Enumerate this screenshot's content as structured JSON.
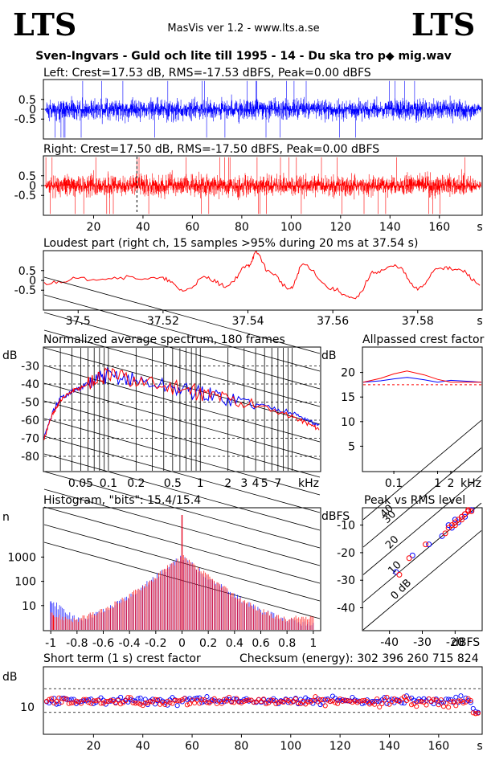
{
  "header": {
    "logo_left": "LTS",
    "logo_right": "LTS",
    "app_title": "MasVis ver 1.2 - www.lts.a.se",
    "file_title": "Sven-Ingvars - Guld och lite till 1995 - 14 - Du ska tro p◆ mig.wav"
  },
  "colors": {
    "left": "#0000ff",
    "right": "#ff0000",
    "grid": "#000000"
  },
  "chart_data": [
    {
      "id": "left_waveform",
      "type": "line",
      "title": "Left: Crest=17.53 dB, RMS=-17.53 dBFS, Peak=0.00 dBFS",
      "yticks": [
        "0.5",
        "0",
        "-0.5"
      ],
      "ylim": [
        -1,
        1
      ],
      "xlim": [
        0,
        177
      ],
      "series": [
        {
          "color": "#0000ff",
          "envelope": {
            "amplitude_typical": 0.8,
            "peak": 1.0,
            "fade_out_start": 172,
            "end": 177
          }
        }
      ]
    },
    {
      "id": "right_waveform",
      "type": "line",
      "title": "Right: Crest=17.50 dB, RMS=-17.50 dBFS, Peak=0.00 dBFS",
      "yticks": [
        "0.5",
        "0",
        "-0.5"
      ],
      "ylim": [
        -1,
        1
      ],
      "xlim": [
        0,
        177
      ],
      "xticks": [
        20,
        40,
        60,
        80,
        100,
        120,
        140,
        160
      ],
      "xunit": "s",
      "marker_x": 37.54,
      "series": [
        {
          "color": "#ff0000",
          "envelope": {
            "amplitude_typical": 0.8,
            "peak": 1.0,
            "fade_out_start": 172,
            "end": 177
          }
        }
      ]
    },
    {
      "id": "loudest_part",
      "type": "line",
      "title": "Loudest part (right ch, 15 samples >95% during 20 ms at 37.54 s)",
      "yticks": [
        "0.5",
        "0",
        "-0.5"
      ],
      "ylim": [
        -1,
        1
      ],
      "xlim": [
        37.492,
        37.595
      ],
      "xticks": [
        "37.5",
        "37.52",
        "37.54",
        "37.56",
        "37.58"
      ],
      "xunit": "s",
      "series": [
        {
          "color": "#ff0000",
          "x": [
            37.492,
            37.5,
            37.51,
            37.52,
            37.525,
            37.53,
            37.535,
            37.54,
            37.542,
            37.545,
            37.55,
            37.553,
            37.56,
            37.565,
            37.57,
            37.575,
            37.58,
            37.585,
            37.59,
            37.595
          ],
          "y": [
            -0.1,
            0.05,
            0.1,
            0.05,
            -0.35,
            0.1,
            -0.2,
            0.5,
            0.95,
            0.3,
            -0.3,
            0.55,
            -0.3,
            -0.65,
            0.3,
            0.5,
            -0.3,
            0.45,
            0.35,
            -0.15
          ]
        }
      ]
    },
    {
      "id": "spectrum",
      "type": "line",
      "title": "Normalized average spectrum, 180 frames",
      "ylabel": "dB",
      "yticks": [
        "-30",
        "-40",
        "-50",
        "-60",
        "-70",
        "-80"
      ],
      "ylim": [
        -88,
        -20
      ],
      "xticks": [
        "0.05",
        "0.1",
        "0.2",
        "0.5",
        "1",
        "2",
        "3",
        "4",
        "5",
        "7"
      ],
      "xunit": "kHz",
      "xscale": "log",
      "xlim": [
        0.02,
        20
      ],
      "series": [
        {
          "name": "left",
          "color": "#0000ff",
          "x": [
            0.02,
            0.025,
            0.03,
            0.04,
            0.05,
            0.07,
            0.1,
            0.2,
            0.5,
            1,
            2,
            5,
            10,
            15,
            20
          ],
          "y": [
            -70,
            -55,
            -48,
            -44,
            -42,
            -38,
            -35,
            -38,
            -42,
            -45,
            -48,
            -52,
            -56,
            -60,
            -64
          ]
        },
        {
          "name": "right",
          "color": "#ff0000",
          "x": [
            0.02,
            0.025,
            0.03,
            0.04,
            0.05,
            0.07,
            0.1,
            0.2,
            0.5,
            1,
            2,
            5,
            10,
            15,
            20
          ],
          "y": [
            -70,
            -56,
            -49,
            -44,
            -42,
            -38,
            -35,
            -38,
            -42,
            -45,
            -48,
            -53,
            -58,
            -62,
            -65
          ]
        }
      ]
    },
    {
      "id": "allpassed_crest",
      "type": "line",
      "title": "Allpassed crest factor",
      "ylabel": "dB",
      "yticks": [
        "20",
        "15",
        "10",
        "5"
      ],
      "ylim": [
        0,
        25
      ],
      "xscale": "log",
      "xlim": [
        0.02,
        10
      ],
      "xticks": [
        "0.1",
        "1",
        "2"
      ],
      "xunit": "kHz",
      "reference_line": 17.5,
      "series": [
        {
          "name": "left",
          "color": "#0000ff",
          "x": [
            0.02,
            0.05,
            0.1,
            0.2,
            0.5,
            1,
            2,
            5,
            10
          ],
          "y": [
            18,
            18.3,
            18.7,
            19,
            18.5,
            18,
            18.4,
            18.2,
            18.0
          ]
        },
        {
          "name": "right",
          "color": "#ff0000",
          "x": [
            0.02,
            0.05,
            0.1,
            0.2,
            0.5,
            1,
            2,
            5,
            10
          ],
          "y": [
            18,
            18.8,
            19.7,
            20.3,
            19.5,
            18.6,
            18.0,
            18.0,
            18.0
          ]
        }
      ]
    },
    {
      "id": "histogram",
      "type": "line",
      "title": "Histogram, \"bits\": 15.4/15.4",
      "ylabel": "n",
      "yticks": [
        "1000",
        "100",
        "10"
      ],
      "yscale": "log",
      "ylim": [
        1,
        100000
      ],
      "xticks": [
        "-1",
        "-0.8",
        "-0.6",
        "-0.4",
        "-0.2",
        "0",
        "0.2",
        "0.4",
        "0.6",
        "0.8",
        "1"
      ],
      "xlim": [
        -1.05,
        1.05
      ],
      "series": [
        {
          "name": "left",
          "color": "#0000ff",
          "x": [
            -1,
            -0.8,
            -0.6,
            -0.4,
            -0.2,
            0,
            0.2,
            0.4,
            0.6,
            0.8,
            1
          ],
          "y": [
            15,
            2.5,
            6,
            25,
            150,
            1000,
            150,
            25,
            6,
            2.5,
            1.5
          ]
        },
        {
          "name": "right",
          "color": "#ff0000",
          "x": [
            -1,
            -0.8,
            -0.6,
            -0.4,
            -0.2,
            0,
            0.2,
            0.4,
            0.6,
            0.8,
            1
          ],
          "y": [
            4,
            2.5,
            6,
            25,
            150,
            1000,
            150,
            25,
            6,
            2.5,
            4
          ]
        }
      ]
    },
    {
      "id": "peak_vs_rms",
      "type": "scatter",
      "title": "Peak vs RMS level",
      "ylabel": "dBFS",
      "xlabel": "dBFS",
      "yticks": [
        "-10",
        "-20",
        "-30",
        "-40"
      ],
      "xticks": [
        "-40",
        "-30",
        "-20"
      ],
      "diagonal_labels": [
        "40",
        "30",
        "20",
        "10",
        "0 dB"
      ],
      "xlim": [
        -48,
        -12
      ],
      "ylim": [
        -48,
        -4
      ],
      "series": [
        {
          "name": "left",
          "color": "#0000ff",
          "x": [
            -28,
            -33,
            -38,
            -22,
            -20,
            -18,
            -17,
            -16,
            -19,
            -21,
            -24,
            -15,
            -17
          ],
          "y": [
            -17,
            -21,
            -27,
            -10,
            -8,
            -7,
            -6,
            -5,
            -9,
            -11,
            -14,
            -4.5,
            -7
          ]
        },
        {
          "name": "right",
          "color": "#ff0000",
          "x": [
            -29,
            -34,
            -37,
            -22,
            -20,
            -18,
            -17,
            -16,
            -19,
            -21,
            -23,
            -15,
            -18,
            -17,
            -16,
            -20
          ],
          "y": [
            -17,
            -22,
            -28,
            -11,
            -9,
            -7,
            -6,
            -5,
            -8,
            -10,
            -13,
            -5,
            -8,
            -6,
            -4.5,
            -10
          ]
        }
      ]
    },
    {
      "id": "short_term_crest",
      "type": "scatter",
      "title": "Short term (1 s) crest factor",
      "checksum": "Checksum (energy):   302 396 260 715 824",
      "ylabel": "dB",
      "yticks": [
        "10"
      ],
      "ylim": [
        0,
        25
      ],
      "xlim": [
        0,
        177
      ],
      "xticks": [
        20,
        40,
        60,
        80,
        100,
        120,
        140,
        160
      ],
      "xunit": "s",
      "series": [
        {
          "name": "left",
          "color": "#0000ff",
          "typical": 12.5,
          "spread": 2.5
        },
        {
          "name": "right",
          "color": "#ff0000",
          "typical": 12,
          "spread": 2.5
        }
      ]
    }
  ]
}
